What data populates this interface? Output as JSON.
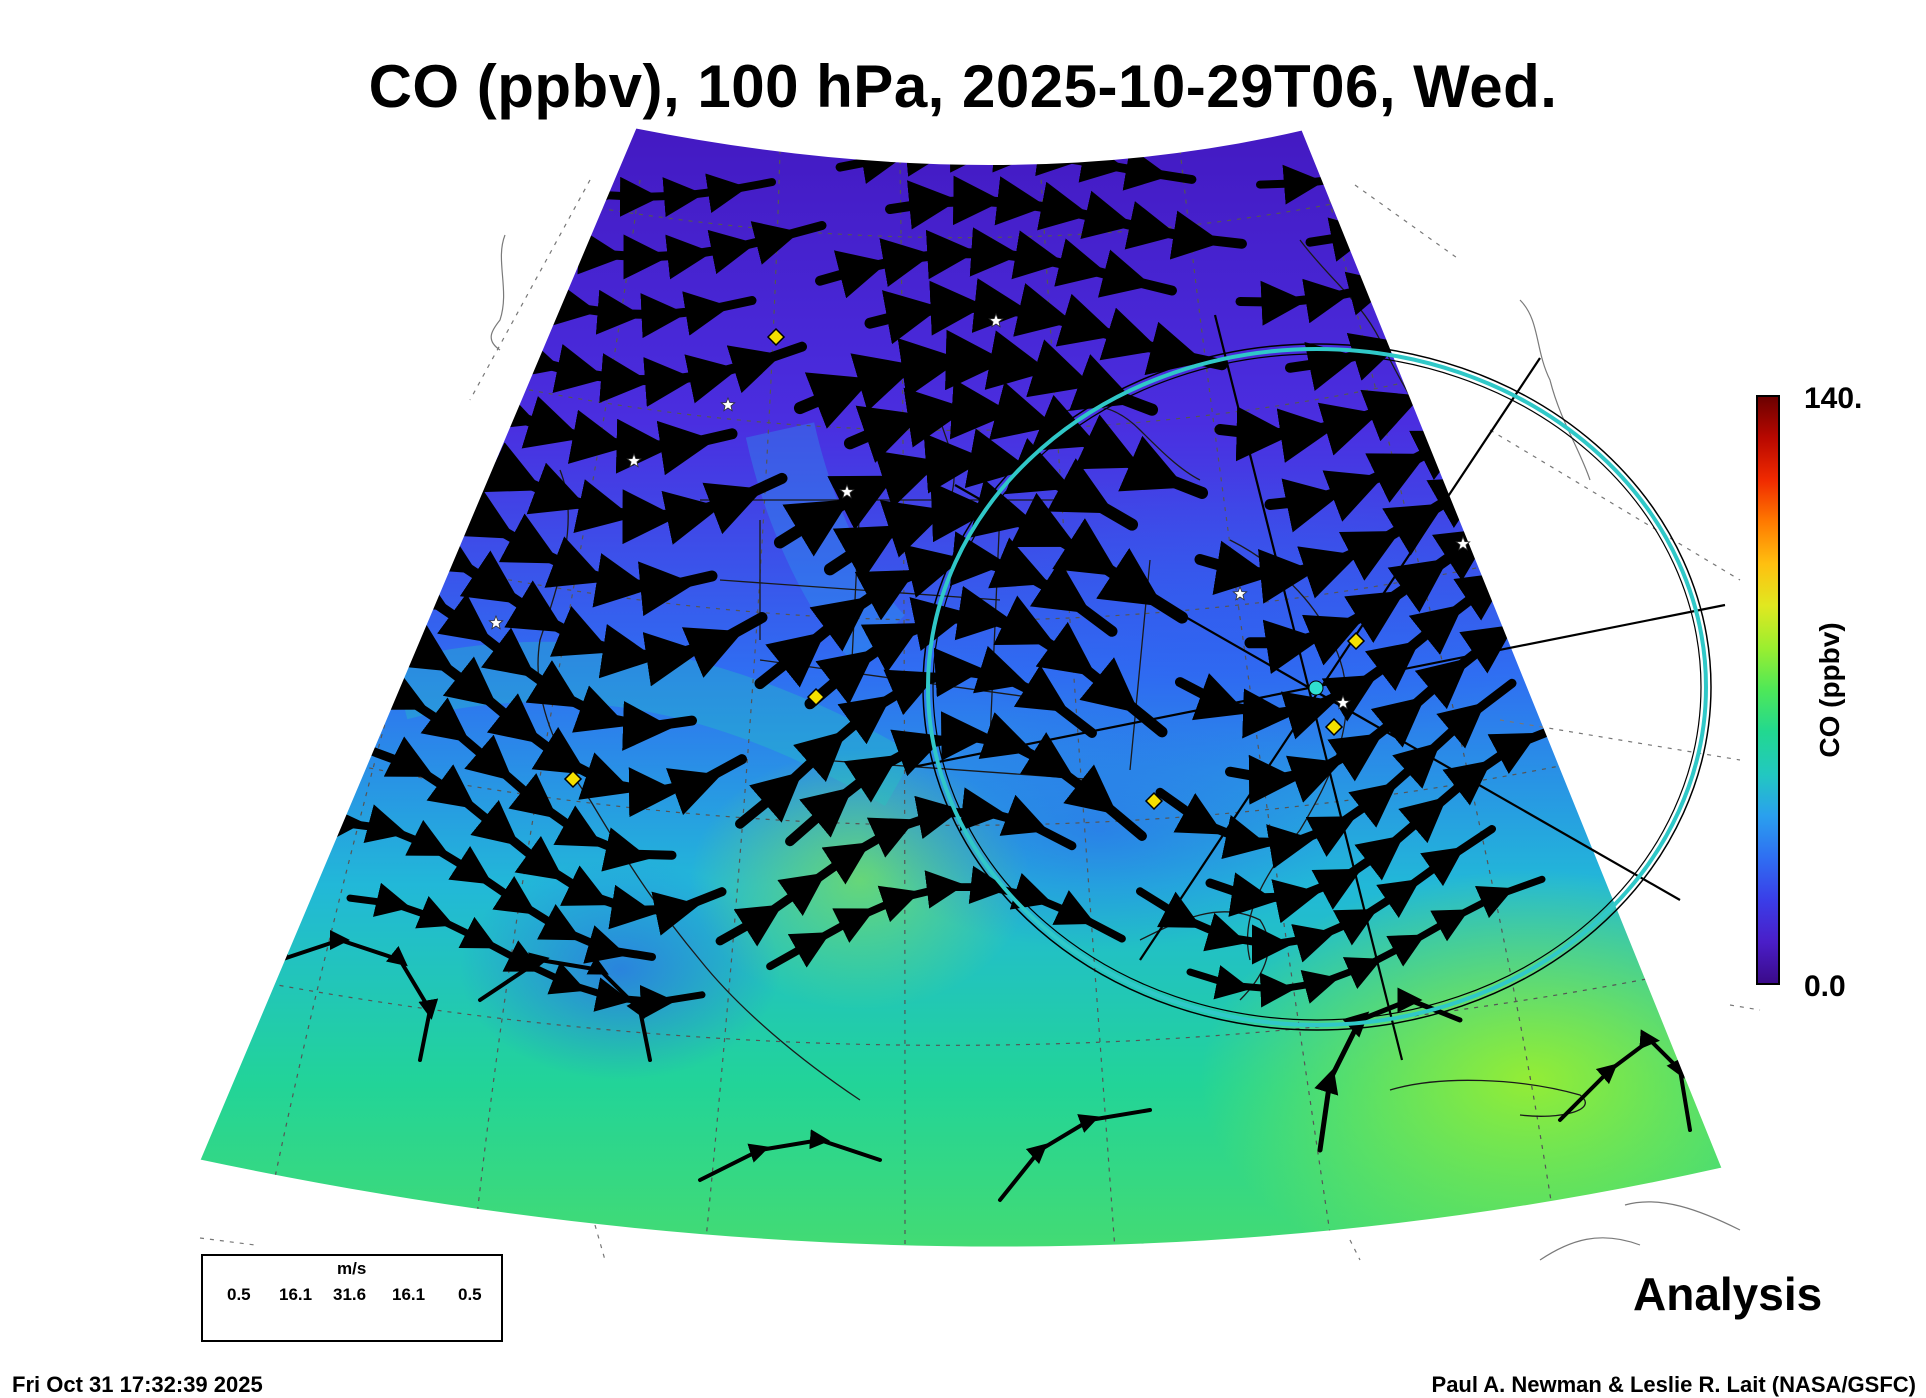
{
  "title": "CO (ppbv), 100 hPa, 2025-10-29T06, Wed.",
  "colorbar": {
    "label": "CO (ppbv)",
    "max_label": "140.",
    "min_label": "0.0",
    "colors": [
      "#3a0a88",
      "#4a1ec8",
      "#3a3ee8",
      "#2f6ef2",
      "#2aa0ee",
      "#22c8c0",
      "#22d890",
      "#4ee858",
      "#9aee30",
      "#e0e820",
      "#ffc010",
      "#ff7a00",
      "#f02a00",
      "#b80800",
      "#6a0000"
    ]
  },
  "wind_legend": {
    "unit": "m/s",
    "speeds": [
      "0.5",
      "16.1",
      "31.6",
      "16.1",
      "0.5"
    ]
  },
  "annotation": "Analysis",
  "footer": {
    "timestamp": "Fri Oct 31 17:32:39 2025",
    "credit": "Paul A. Newman & Leslie R. Lait (NASA/GSFC)"
  },
  "map_colors": {
    "polar": "#4a1ed0",
    "mid": "#2f6ef2",
    "south": "#22d0a0",
    "tropics": "#7ee840",
    "ring": "#30c8c8",
    "streamline": "#000000",
    "diamond": "#f5e000"
  }
}
